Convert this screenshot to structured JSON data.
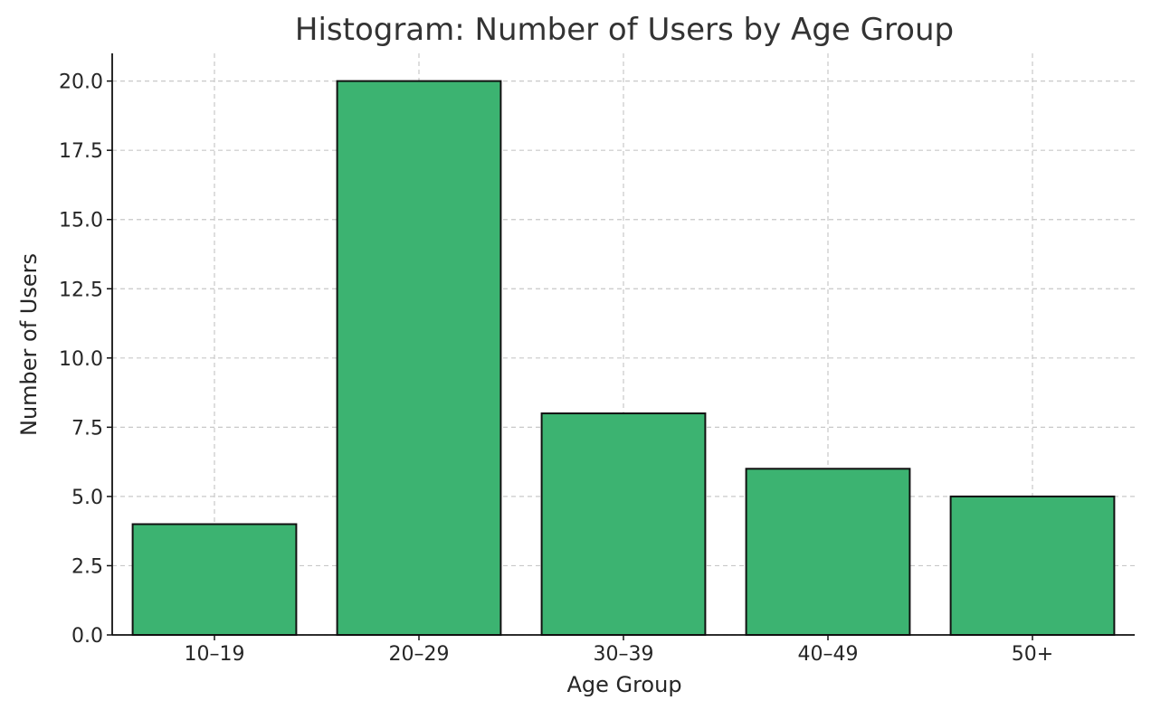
{
  "chart_data": {
    "type": "bar",
    "title": "Histogram: Number of Users by Age Group",
    "xlabel": "Age Group",
    "ylabel": "Number of Users",
    "categories": [
      "10–19",
      "20–29",
      "30–39",
      "40–49",
      "50+"
    ],
    "values": [
      4,
      20,
      8,
      6,
      5
    ],
    "ylim": [
      0,
      21
    ],
    "yticks": [
      "0.0",
      "2.5",
      "5.0",
      "7.5",
      "10.0",
      "12.5",
      "15.0",
      "17.5",
      "20.0"
    ],
    "grid": true,
    "colors": {
      "bar_fill": "#3cb371",
      "bar_edge": "#111111",
      "grid": "#c8c8c8",
      "axis": "#111111",
      "text": "#262626",
      "title": "#333333"
    }
  }
}
